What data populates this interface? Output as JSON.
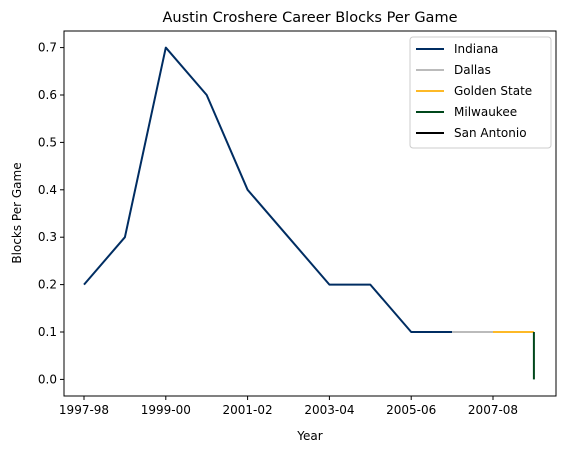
{
  "chart_data": {
    "type": "line",
    "title": "Austin Croshere Career Blocks Per Game",
    "xlabel": "Year",
    "ylabel": "Blocks Per Game",
    "x_categories": [
      "1997-98",
      "1998-99",
      "1999-00",
      "2000-01",
      "2001-02",
      "2002-03",
      "2003-04",
      "2004-05",
      "2005-06",
      "2006-07",
      "2007-08",
      "2008-09"
    ],
    "x_ticks": [
      "1997-98",
      "1999-00",
      "2001-02",
      "2003-04",
      "2005-06",
      "2007-08"
    ],
    "ylim": [
      -0.035,
      0.735
    ],
    "y_ticks": [
      0.0,
      0.1,
      0.2,
      0.3,
      0.4,
      0.5,
      0.6,
      0.7
    ],
    "legend_position": "top-right",
    "grid": false,
    "series": [
      {
        "name": "Indiana",
        "color": "#002D62",
        "points": [
          {
            "x": "1997-98",
            "y": 0.2
          },
          {
            "x": "1998-99",
            "y": 0.3
          },
          {
            "x": "1999-00",
            "y": 0.7
          },
          {
            "x": "2000-01",
            "y": 0.6
          },
          {
            "x": "2001-02",
            "y": 0.4
          },
          {
            "x": "2002-03",
            "y": 0.3
          },
          {
            "x": "2003-04",
            "y": 0.2
          },
          {
            "x": "2004-05",
            "y": 0.2
          },
          {
            "x": "2005-06",
            "y": 0.1
          },
          {
            "x": "2006-07",
            "y": 0.1
          }
        ]
      },
      {
        "name": "Dallas",
        "color": "#BBBBBB",
        "points": [
          {
            "x": "2006-07",
            "y": 0.1
          },
          {
            "x": "2007-08",
            "y": 0.1
          }
        ]
      },
      {
        "name": "Golden State",
        "color": "#FDB927",
        "points": [
          {
            "x": "2007-08",
            "y": 0.1
          },
          {
            "x": "2008-09",
            "y": 0.1
          }
        ]
      },
      {
        "name": "Milwaukee",
        "color": "#00471B",
        "points": [
          {
            "x": "2008-09",
            "y": 0.1
          },
          {
            "x": "2008-09",
            "y": 0.0
          }
        ]
      },
      {
        "name": "San Antonio",
        "color": "#000000",
        "points": []
      }
    ]
  }
}
